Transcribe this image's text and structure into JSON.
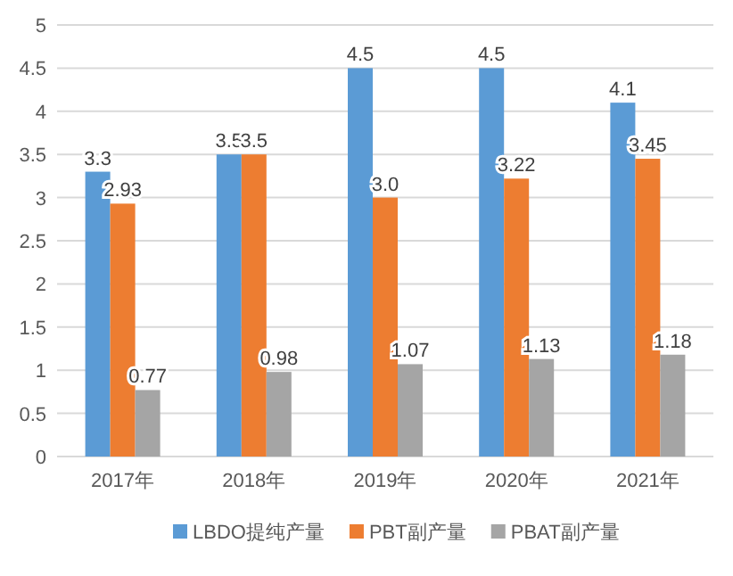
{
  "chart_data": {
    "type": "bar",
    "categories": [
      "2017年",
      "2018年",
      "2019年",
      "2020年",
      "2021年"
    ],
    "series": [
      {
        "name": "LBDO提纯产量",
        "color": "#5b9bd5",
        "values": [
          3.3,
          3.5,
          4.5,
          4.5,
          4.1
        ],
        "value_labels": [
          "3.3",
          "3.5",
          "4.5",
          "4.5",
          "4.1"
        ]
      },
      {
        "name": "PBT副产量",
        "color": "#ed7d31",
        "values": [
          2.93,
          3.5,
          3.0,
          3.22,
          3.45
        ],
        "value_labels": [
          "2.93",
          "3.5",
          "3.0",
          "3.22",
          "3.45"
        ]
      },
      {
        "name": "PBAT副产量",
        "color": "#a5a5a5",
        "values": [
          0.77,
          0.98,
          1.07,
          1.13,
          1.18
        ],
        "value_labels": [
          "0.77",
          "0.98",
          "1.07",
          "1.13",
          "1.18"
        ]
      }
    ],
    "ylim": [
      0,
      5
    ],
    "yticks": [
      0,
      0.5,
      1,
      1.5,
      2,
      2.5,
      3,
      3.5,
      4,
      4.5,
      5
    ],
    "grid": "y",
    "legend": "bottom"
  }
}
